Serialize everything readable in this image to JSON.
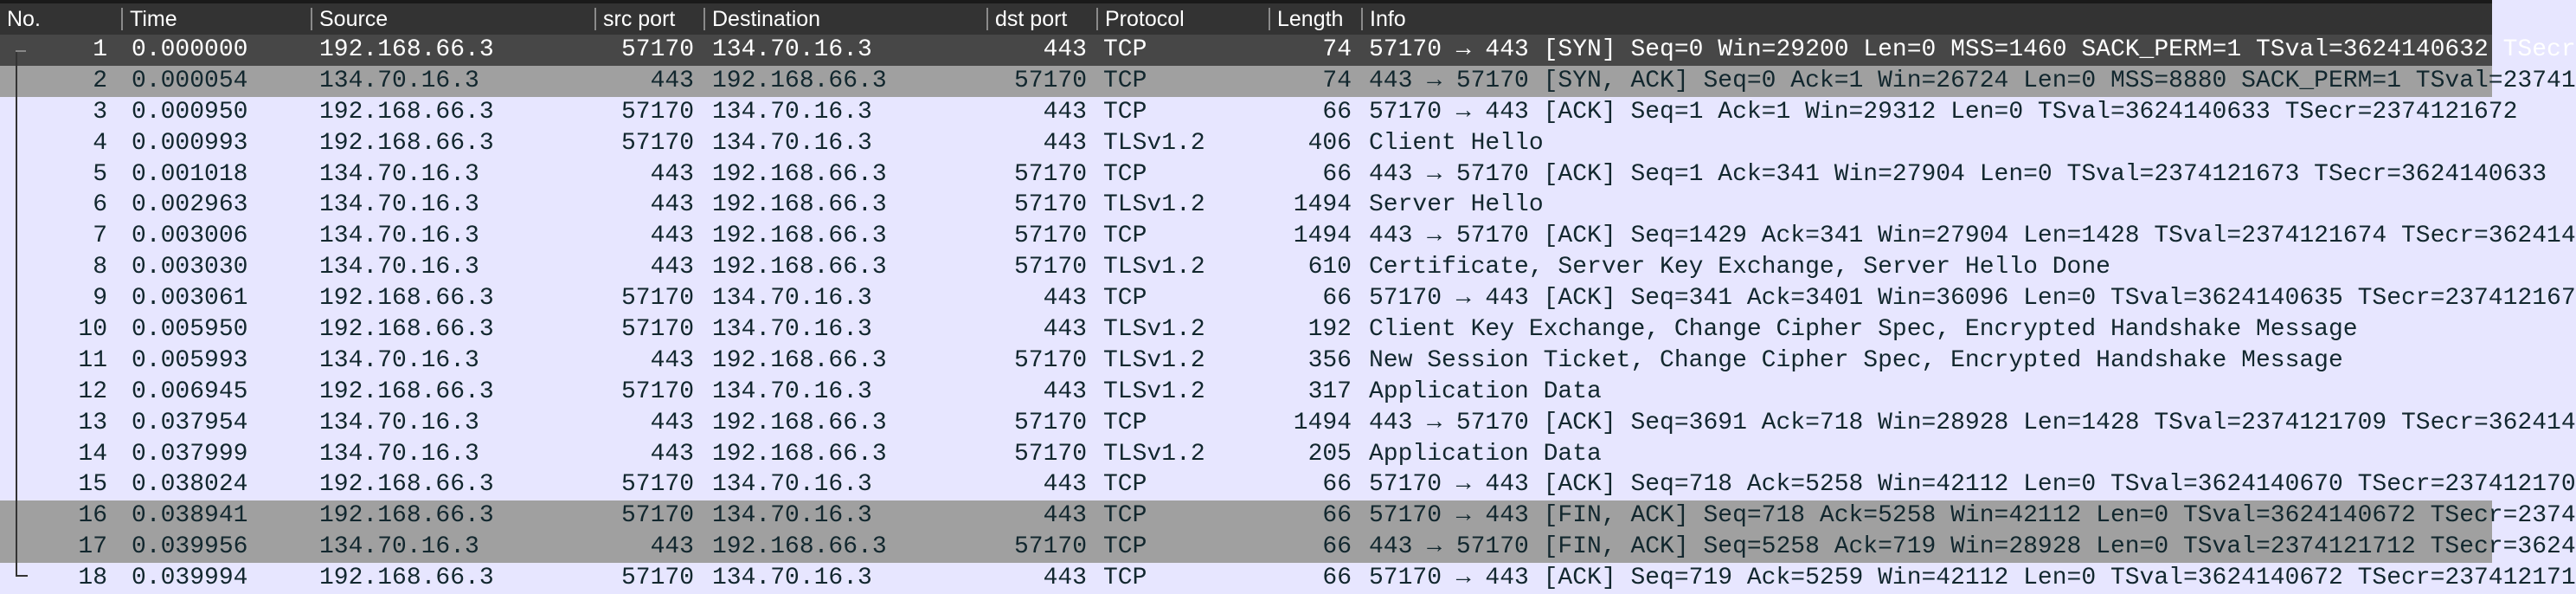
{
  "columns": [
    "No.",
    "Time",
    "Source",
    "src port",
    "Destination",
    "dst port",
    "Protocol",
    "Length",
    "Info"
  ],
  "colors": {
    "header_bg": "#333333",
    "selected_bg": "#474747",
    "marked_bg": "#a0a0a0",
    "row_bg": "#e7e6ff",
    "text": "#12272e"
  },
  "selected_row": 1,
  "marked_rows": [
    2,
    16,
    17
  ],
  "packets": [
    {
      "no": "1",
      "time": "0.000000",
      "src": "192.168.66.3",
      "sport": "57170",
      "dst": "134.70.16.3",
      "dport": "443",
      "proto": "TCP",
      "len": "74",
      "info": "57170 → 443 [SYN] Seq=0 Win=29200 Len=0 MSS=1460 SACK_PERM=1 TSval=3624140632 TSecr"
    },
    {
      "no": "2",
      "time": "0.000054",
      "src": "134.70.16.3",
      "sport": "443",
      "dst": "192.168.66.3",
      "dport": "57170",
      "proto": "TCP",
      "len": "74",
      "info": "443 → 57170 [SYN, ACK] Seq=0 Ack=1 Win=26724 Len=0 MSS=8880 SACK_PERM=1 TSval=23741"
    },
    {
      "no": "3",
      "time": "0.000950",
      "src": "192.168.66.3",
      "sport": "57170",
      "dst": "134.70.16.3",
      "dport": "443",
      "proto": "TCP",
      "len": "66",
      "info": "57170 → 443 [ACK] Seq=1 Ack=1 Win=29312 Len=0 TSval=3624140633 TSecr=2374121672"
    },
    {
      "no": "4",
      "time": "0.000993",
      "src": "192.168.66.3",
      "sport": "57170",
      "dst": "134.70.16.3",
      "dport": "443",
      "proto": "TLSv1.2",
      "len": "406",
      "info": "Client Hello"
    },
    {
      "no": "5",
      "time": "0.001018",
      "src": "134.70.16.3",
      "sport": "443",
      "dst": "192.168.66.3",
      "dport": "57170",
      "proto": "TCP",
      "len": "66",
      "info": "443 → 57170 [ACK] Seq=1 Ack=341 Win=27904 Len=0 TSval=2374121673 TSecr=3624140633"
    },
    {
      "no": "6",
      "time": "0.002963",
      "src": "134.70.16.3",
      "sport": "443",
      "dst": "192.168.66.3",
      "dport": "57170",
      "proto": "TLSv1.2",
      "len": "1494",
      "info": "Server Hello"
    },
    {
      "no": "7",
      "time": "0.003006",
      "src": "134.70.16.3",
      "sport": "443",
      "dst": "192.168.66.3",
      "dport": "57170",
      "proto": "TCP",
      "len": "1494",
      "info": "443 → 57170 [ACK] Seq=1429 Ack=341 Win=27904 Len=1428 TSval=2374121674 TSecr=362414"
    },
    {
      "no": "8",
      "time": "0.003030",
      "src": "134.70.16.3",
      "sport": "443",
      "dst": "192.168.66.3",
      "dport": "57170",
      "proto": "TLSv1.2",
      "len": "610",
      "info": "Certificate, Server Key Exchange, Server Hello Done"
    },
    {
      "no": "9",
      "time": "0.003061",
      "src": "192.168.66.3",
      "sport": "57170",
      "dst": "134.70.16.3",
      "dport": "443",
      "proto": "TCP",
      "len": "66",
      "info": "57170 → 443 [ACK] Seq=341 Ack=3401 Win=36096 Len=0 TSval=3624140635 TSecr=237412167"
    },
    {
      "no": "10",
      "time": "0.005950",
      "src": "192.168.66.3",
      "sport": "57170",
      "dst": "134.70.16.3",
      "dport": "443",
      "proto": "TLSv1.2",
      "len": "192",
      "info": "Client Key Exchange, Change Cipher Spec, Encrypted Handshake Message"
    },
    {
      "no": "11",
      "time": "0.005993",
      "src": "134.70.16.3",
      "sport": "443",
      "dst": "192.168.66.3",
      "dport": "57170",
      "proto": "TLSv1.2",
      "len": "356",
      "info": "New Session Ticket, Change Cipher Spec, Encrypted Handshake Message"
    },
    {
      "no": "12",
      "time": "0.006945",
      "src": "192.168.66.3",
      "sport": "57170",
      "dst": "134.70.16.3",
      "dport": "443",
      "proto": "TLSv1.2",
      "len": "317",
      "info": "Application Data"
    },
    {
      "no": "13",
      "time": "0.037954",
      "src": "134.70.16.3",
      "sport": "443",
      "dst": "192.168.66.3",
      "dport": "57170",
      "proto": "TCP",
      "len": "1494",
      "info": "443 → 57170 [ACK] Seq=3691 Ack=718 Win=28928 Len=1428 TSval=2374121709 TSecr=362414"
    },
    {
      "no": "14",
      "time": "0.037999",
      "src": "134.70.16.3",
      "sport": "443",
      "dst": "192.168.66.3",
      "dport": "57170",
      "proto": "TLSv1.2",
      "len": "205",
      "info": "Application Data"
    },
    {
      "no": "15",
      "time": "0.038024",
      "src": "192.168.66.3",
      "sport": "57170",
      "dst": "134.70.16.3",
      "dport": "443",
      "proto": "TCP",
      "len": "66",
      "info": "57170 → 443 [ACK] Seq=718 Ack=5258 Win=42112 Len=0 TSval=3624140670 TSecr=237412170"
    },
    {
      "no": "16",
      "time": "0.038941",
      "src": "192.168.66.3",
      "sport": "57170",
      "dst": "134.70.16.3",
      "dport": "443",
      "proto": "TCP",
      "len": "66",
      "info": "57170 → 443 [FIN, ACK] Seq=718 Ack=5258 Win=42112 Len=0 TSval=3624140672 TSecr=2374"
    },
    {
      "no": "17",
      "time": "0.039956",
      "src": "134.70.16.3",
      "sport": "443",
      "dst": "192.168.66.3",
      "dport": "57170",
      "proto": "TCP",
      "len": "66",
      "info": "443 → 57170 [FIN, ACK] Seq=5258 Ack=719 Win=28928 Len=0 TSval=2374121712 TSecr=3624"
    },
    {
      "no": "18",
      "time": "0.039994",
      "src": "192.168.66.3",
      "sport": "57170",
      "dst": "134.70.16.3",
      "dport": "443",
      "proto": "TCP",
      "len": "66",
      "info": "57170 → 443 [ACK] Seq=719 Ack=5259 Win=42112 Len=0 TSval=3624140672 TSecr=237412171"
    }
  ]
}
